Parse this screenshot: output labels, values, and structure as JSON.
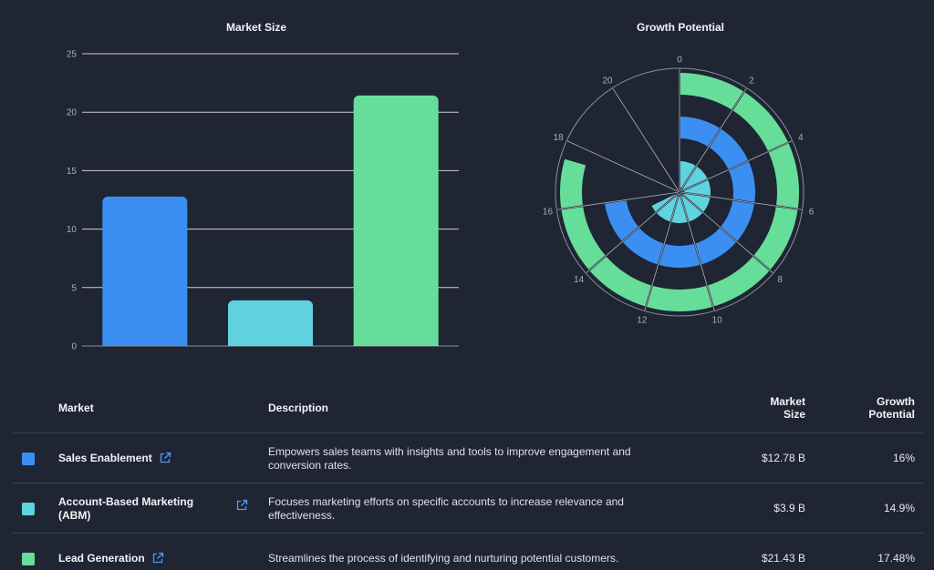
{
  "chart_data": [
    {
      "type": "bar",
      "title": "Market Size",
      "categories": [
        "Sales Enablement",
        "Account-Based Marketing (ABM)",
        "Lead Generation"
      ],
      "values": [
        12.78,
        3.9,
        21.43
      ],
      "colors": [
        "#3b8ff3",
        "#5fd3e0",
        "#66de9a"
      ],
      "ylim": [
        0,
        25
      ],
      "yticks": [
        "0",
        "5",
        "10",
        "15",
        "20",
        "25"
      ],
      "grid": true
    },
    {
      "type": "radial-bar",
      "title": "Growth Potential",
      "categories": [
        "Sales Enablement",
        "Account-Based Marketing (ABM)",
        "Lead Generation"
      ],
      "values": [
        16,
        14.9,
        17.48
      ],
      "colors": [
        "#3b8ff3",
        "#5fd3e0",
        "#66de9a"
      ],
      "angle_range": [
        0,
        22
      ],
      "ticks": [
        "0",
        "2",
        "4",
        "6",
        "8",
        "10",
        "12",
        "14",
        "16",
        "18",
        "20"
      ]
    }
  ],
  "table": {
    "headers": {
      "market": "Market",
      "description": "Description",
      "size": "Market\nSize",
      "growth": "Growth\nPotential"
    },
    "rows": [
      {
        "name": "Sales Enablement",
        "description": "Empowers sales teams with insights and tools to improve engagement and conversion rates.",
        "size": "$12.78 B",
        "growth": "16%",
        "color": "#3b8ff3",
        "icon": "external-link-icon"
      },
      {
        "name": "Account-Based Marketing (ABM)",
        "description": "Focuses marketing efforts on specific accounts to increase relevance and effectiveness.",
        "size": "$3.9 B",
        "growth": "14.9%",
        "color": "#5fd3e0",
        "icon": "external-link-icon"
      },
      {
        "name": "Lead Generation",
        "description": "Streamlines the process of identifying and nurturing potential customers.",
        "size": "$21.43 B",
        "growth": "17.48%",
        "color": "#66de9a",
        "icon": "external-link-icon"
      }
    ]
  }
}
